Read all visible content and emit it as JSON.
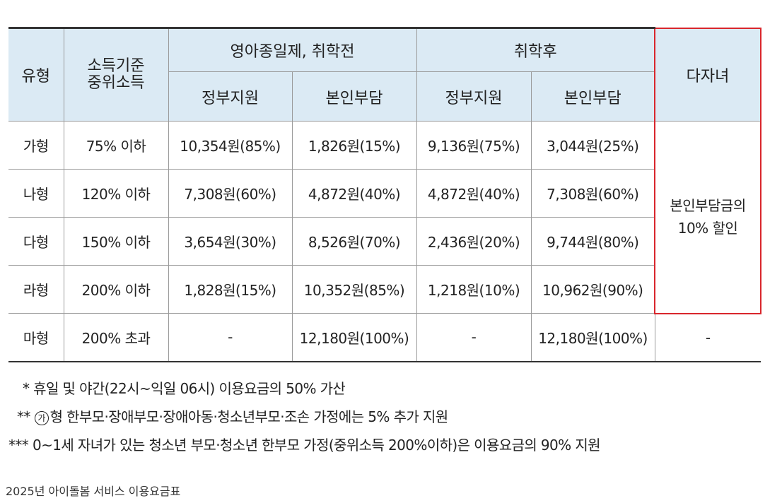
{
  "table": {
    "headers": {
      "type": "유형",
      "income": "소득기준\n중위소득",
      "group_before": "영아종일제, 취학전",
      "group_after": "취학후",
      "multichild": "다자녀",
      "gov": "정부지원",
      "self": "본인부담"
    },
    "rows": [
      {
        "type": "가형",
        "income": "75% 이하",
        "b_gov": "10,354원(85%)",
        "b_self": "1,826원(15%)",
        "a_gov": "9,136원(75%)",
        "a_self": "3,044원(25%)"
      },
      {
        "type": "나형",
        "income": "120% 이하",
        "b_gov": "7,308원(60%)",
        "b_self": "4,872원(40%)",
        "a_gov": "4,872원(40%)",
        "a_self": "7,308원(60%)"
      },
      {
        "type": "다형",
        "income": "150% 이하",
        "b_gov": "3,654원(30%)",
        "b_self": "8,526원(70%)",
        "a_gov": "2,436원(20%)",
        "a_self": "9,744원(80%)"
      },
      {
        "type": "라형",
        "income": "200% 이하",
        "b_gov": "1,828원(15%)",
        "b_self": "10,352원(85%)",
        "a_gov": "1,218원(10%)",
        "a_self": "10,962원(90%)"
      },
      {
        "type": "마형",
        "income": "200% 초과",
        "b_gov": "-",
        "b_self": "12,180원(100%)",
        "a_gov": "-",
        "a_self": "12,180원(100%)",
        "multi": "-"
      }
    ],
    "multichild_discount": "본인부담금의\n10% 할인",
    "highlight_color": "#d9262c",
    "header_bg": "#dbeaf4"
  },
  "notes": {
    "n1_mark": "*",
    "n1": "휴일 및 야간(22시~익일 06시) 이용요금의 50% 가산",
    "n2_mark": "**",
    "n2_circle": "가",
    "n2": "형 한부모·장애부모·장애아동·청소년부모·조손 가정에는 5% 추가 지원",
    "n3_mark": "***",
    "n3": "0~1세 자녀가 있는 청소년 부모·청소년 한부모 가정(중위소득 200%이하)은 이용요금의 90% 지원"
  },
  "caption": "2025년 아이돌봄 서비스 이용요금표"
}
